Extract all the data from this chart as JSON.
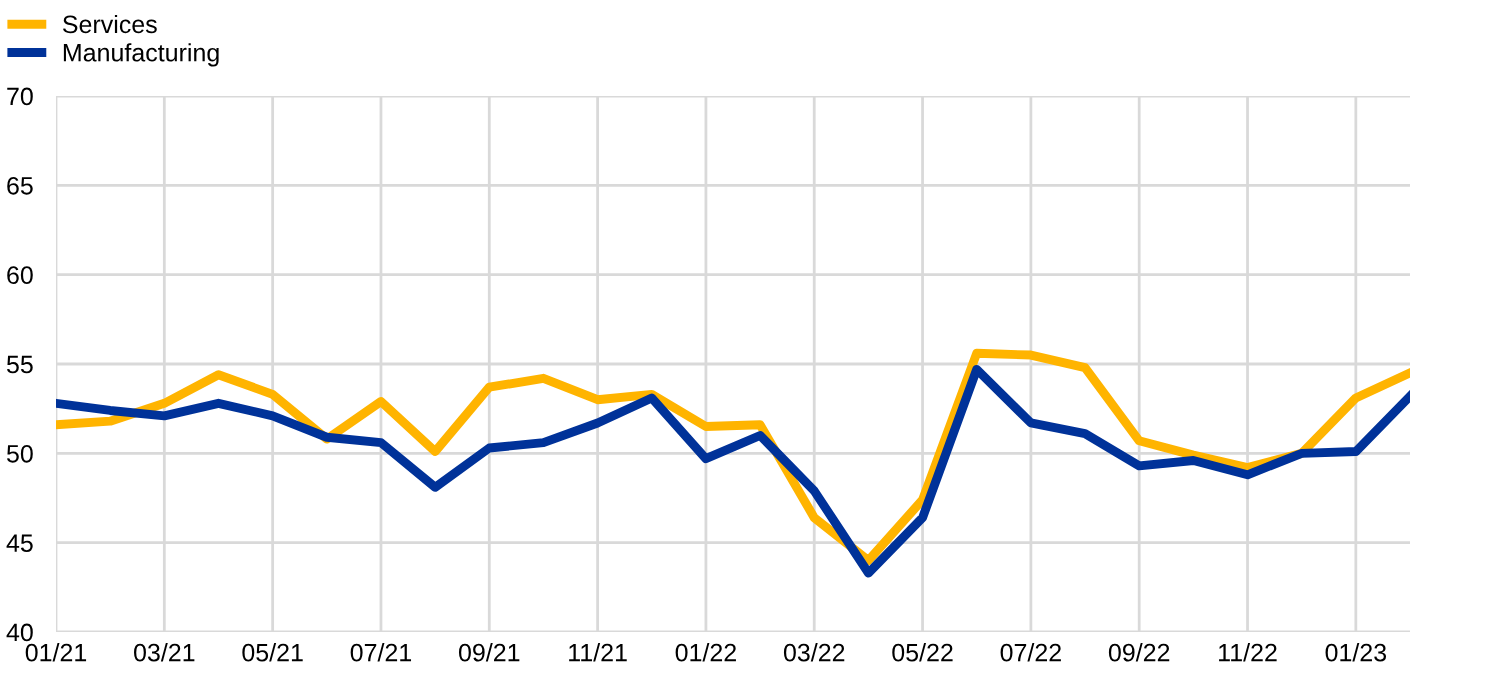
{
  "chart_data": {
    "type": "line",
    "categories": [
      "01/21",
      null,
      "03/21",
      null,
      "05/21",
      null,
      "07/21",
      null,
      "09/21",
      null,
      "11/21",
      null,
      "01/22",
      null,
      "03/22",
      null,
      "05/22",
      null,
      "07/22",
      null,
      "09/22",
      null,
      "11/22",
      null,
      "01/23",
      null
    ],
    "series": [
      {
        "name": "Services",
        "color": "#ffb400",
        "values": [
          51.6,
          51.8,
          52.8,
          54.4,
          53.3,
          50.8,
          52.9,
          50.1,
          53.7,
          54.2,
          53.0,
          53.3,
          51.5,
          51.6,
          46.4,
          44.0,
          47.4,
          55.6,
          55.5,
          54.8,
          50.7,
          49.9,
          49.2,
          50.0,
          53.1,
          54.5
        ]
      },
      {
        "name": "Manufacturing",
        "color": "#003299",
        "values": [
          52.8,
          52.4,
          52.1,
          52.8,
          52.1,
          50.9,
          50.6,
          48.1,
          50.3,
          50.6,
          51.7,
          53.1,
          49.7,
          51.0,
          47.9,
          43.3,
          46.4,
          54.7,
          51.7,
          51.1,
          49.3,
          49.6,
          48.8,
          50.0,
          50.1,
          53.2
        ]
      }
    ],
    "ylim": [
      40,
      70
    ],
    "yticks": [
      40,
      45,
      50,
      55,
      60,
      65,
      70
    ],
    "grid": true,
    "legend": "top left",
    "line_style": "solid",
    "marker": "none"
  }
}
